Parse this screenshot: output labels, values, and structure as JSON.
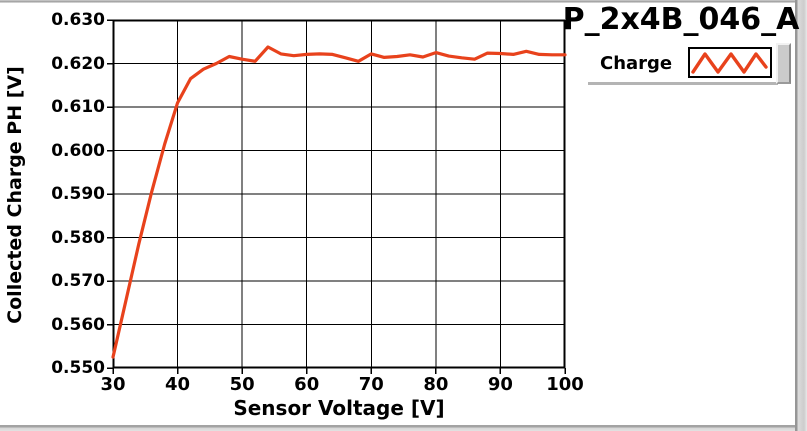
{
  "title": "P_2x4B_046_A",
  "legend": {
    "item_label": "Charge",
    "line_color": "#e8421c"
  },
  "chart_data": {
    "type": "line",
    "title": "P_2x4B_046_A",
    "xlabel": "Sensor Voltage [V]",
    "ylabel": "Collected Charge PH [V]",
    "xlim": [
      30,
      100
    ],
    "ylim": [
      0.55,
      0.63
    ],
    "x_ticks": [
      "30",
      "40",
      "50",
      "60",
      "70",
      "80",
      "90",
      "100"
    ],
    "y_ticks": [
      "0.550",
      "0.560",
      "0.570",
      "0.580",
      "0.590",
      "0.600",
      "0.610",
      "0.620",
      "0.630"
    ],
    "grid": true,
    "grid_color": "#000000",
    "plot_background": "#ffffff",
    "legend_position": "top-right",
    "series": [
      {
        "name": "Charge",
        "color": "#e8421c",
        "x": [
          30,
          32,
          34,
          36,
          38,
          40,
          42,
          44,
          46,
          48,
          50,
          52,
          54,
          56,
          58,
          60,
          62,
          64,
          66,
          68,
          70,
          72,
          74,
          76,
          78,
          80,
          82,
          84,
          86,
          88,
          90,
          92,
          94,
          96,
          98,
          100
        ],
        "y": [
          0.5525,
          0.5655,
          0.5785,
          0.5905,
          0.6015,
          0.611,
          0.6165,
          0.6187,
          0.62,
          0.6216,
          0.621,
          0.6205,
          0.6238,
          0.6222,
          0.6218,
          0.6221,
          0.6222,
          0.6221,
          0.6213,
          0.6205,
          0.6222,
          0.6214,
          0.6216,
          0.622,
          0.6215,
          0.6225,
          0.6217,
          0.6213,
          0.621,
          0.6224,
          0.6223,
          0.6221,
          0.6228,
          0.6221,
          0.622,
          0.622
        ]
      }
    ]
  }
}
